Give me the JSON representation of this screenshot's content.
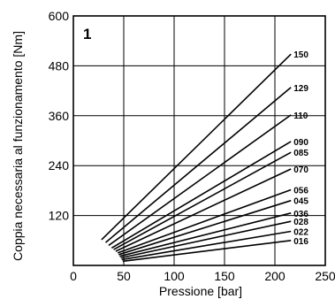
{
  "chart_data": {
    "type": "line",
    "panel_label": "1",
    "xlabel": "Pressione [bar]",
    "ylabel": "Coppia necessaria al funzionamento [Nm]",
    "xlim": [
      0,
      250
    ],
    "ylim": [
      0,
      600
    ],
    "x_ticks": [
      "0",
      "50",
      "100",
      "150",
      "200",
      "250"
    ],
    "y_ticks": [
      "120",
      "240",
      "360",
      "480",
      "600"
    ],
    "grid": true,
    "series": [
      {
        "name": "150",
        "points": [
          [
            28,
            62
          ],
          [
            216,
            508
          ]
        ]
      },
      {
        "name": "129",
        "points": [
          [
            32,
            55
          ],
          [
            216,
            428
          ]
        ]
      },
      {
        "name": "110",
        "points": [
          [
            35,
            48
          ],
          [
            216,
            362
          ]
        ]
      },
      {
        "name": "090",
        "points": [
          [
            38,
            42
          ],
          [
            216,
            298
          ]
        ]
      },
      {
        "name": "085",
        "points": [
          [
            40,
            38
          ],
          [
            216,
            272
          ]
        ]
      },
      {
        "name": "070",
        "points": [
          [
            42,
            34
          ],
          [
            216,
            232
          ]
        ]
      },
      {
        "name": "056",
        "points": [
          [
            44,
            30
          ],
          [
            216,
            182
          ]
        ]
      },
      {
        "name": "045",
        "points": [
          [
            45,
            26
          ],
          [
            216,
            156
          ]
        ]
      },
      {
        "name": "036",
        "points": [
          [
            46,
            22
          ],
          [
            216,
            126
          ]
        ]
      },
      {
        "name": "028",
        "points": [
          [
            47,
            18
          ],
          [
            216,
            106
          ]
        ]
      },
      {
        "name": "022",
        "points": [
          [
            48,
            14
          ],
          [
            216,
            82
          ]
        ]
      },
      {
        "name": "016",
        "points": [
          [
            49,
            10
          ],
          [
            216,
            60
          ]
        ]
      }
    ]
  }
}
